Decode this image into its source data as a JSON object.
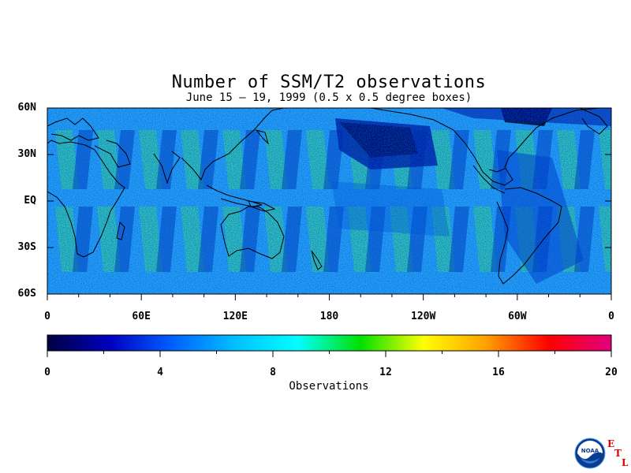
{
  "map": {
    "title": "Number of SSM/T2 observations",
    "subtitle": "June 15 – 19, 1999 (0.5 x 0.5 degree boxes)",
    "lat_labels": [
      "60N",
      "30N",
      "EQ",
      "30S",
      "60S"
    ],
    "lat_values": [
      60,
      30,
      0,
      -30,
      -60
    ],
    "lon_labels": [
      "0",
      "60E",
      "120E",
      "180",
      "120W",
      "60W",
      "0"
    ],
    "lon_values": [
      0,
      60,
      120,
      180,
      240,
      300,
      360
    ],
    "extent": {
      "lon": [
        0,
        360
      ],
      "lat": [
        -60,
        60
      ]
    }
  },
  "colorbar": {
    "label": "Observations",
    "ticks": [
      "0",
      "4",
      "8",
      "12",
      "16",
      "20"
    ],
    "tick_values": [
      0,
      4,
      8,
      12,
      16,
      20
    ],
    "range": [
      0,
      20
    ],
    "stops": [
      "#000040",
      "#0000c0",
      "#0060ff",
      "#00c0ff",
      "#00ffff",
      "#00e000",
      "#ffff00",
      "#ffa000",
      "#ff0000",
      "#e0007f"
    ]
  },
  "logo": {
    "name": "NOAA",
    "text": "NOAA",
    "etl": [
      "E",
      "T",
      "L"
    ]
  }
}
